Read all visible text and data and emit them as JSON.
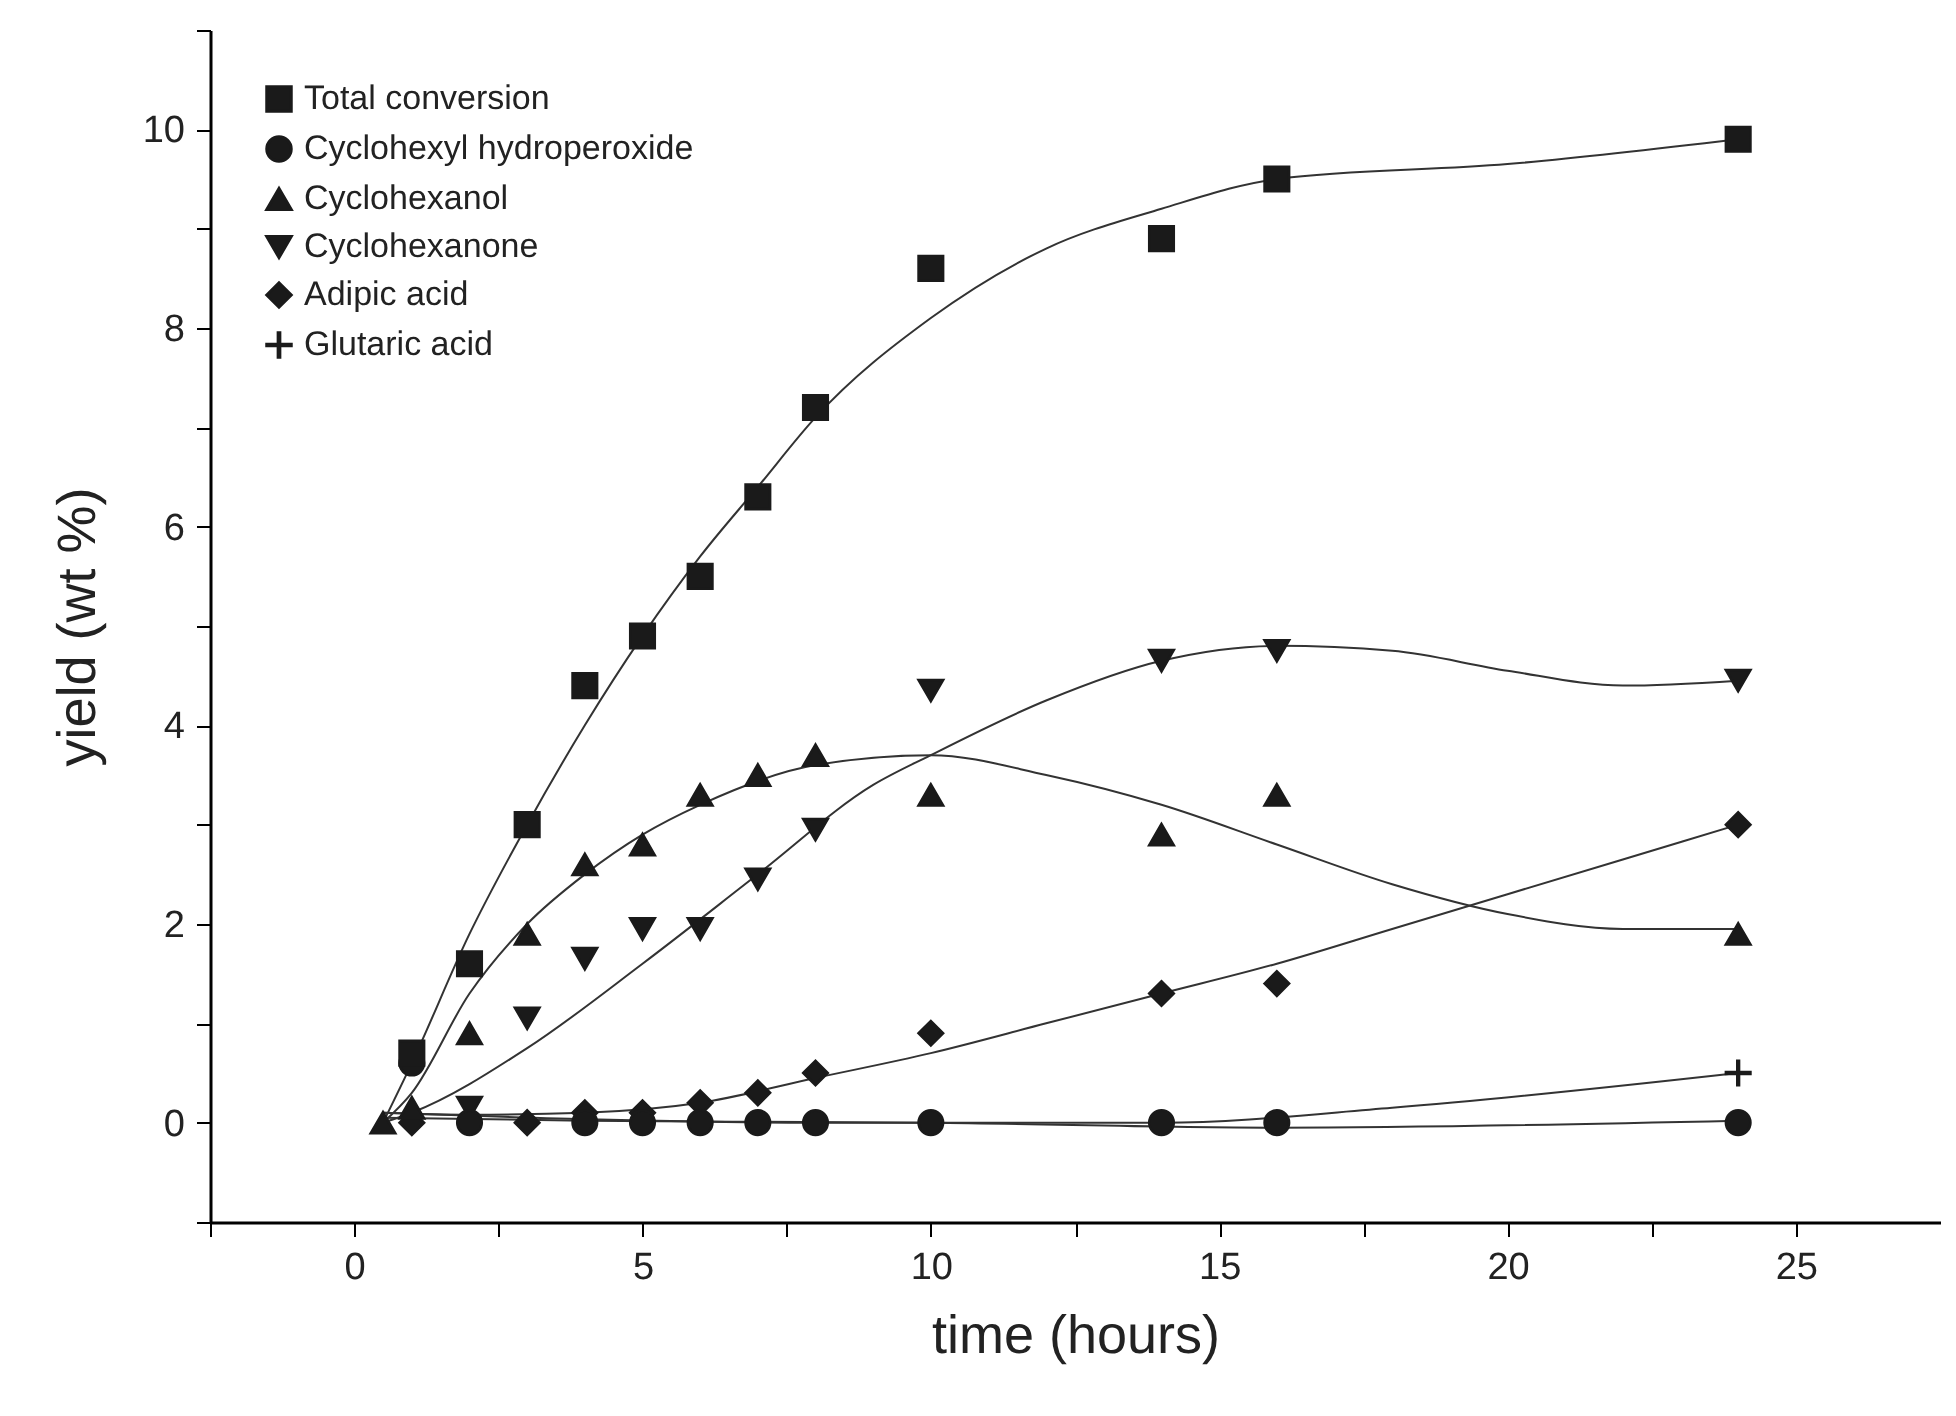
{
  "chart_data": {
    "type": "scatter",
    "xlabel": "time (hours)",
    "ylabel": "yield (wt %)",
    "xlim": [
      -2.5,
      27.5
    ],
    "ylim": [
      -1,
      11
    ],
    "xticks": [
      {
        "value": -2.5,
        "label": null
      },
      0,
      {
        "value": 2.5,
        "label": null
      },
      5,
      {
        "value": 7.5,
        "label": null
      },
      10,
      {
        "value": 12.5,
        "label": null
      },
      15,
      {
        "value": 17.5,
        "label": null
      },
      20,
      {
        "value": 22.5,
        "label": null
      },
      25
    ],
    "yticks": [
      {
        "value": -1,
        "label": null
      },
      0,
      {
        "value": 1,
        "label": null
      },
      2,
      {
        "value": 3,
        "label": null
      },
      4,
      {
        "value": 5,
        "label": null
      },
      6,
      {
        "value": 7,
        "label": null
      },
      8,
      {
        "value": 9,
        "label": null
      },
      10,
      {
        "value": 11,
        "label": null
      }
    ],
    "grid": false,
    "legend": "top left",
    "series": [
      {
        "name": "Total conversion",
        "marker": "square",
        "color": "#1a1a1a",
        "x": [
          1,
          2,
          3,
          4,
          5,
          6,
          7,
          8,
          10,
          14,
          16,
          24
        ],
        "values": [
          0.7,
          1.6,
          3.0,
          4.4,
          4.9,
          5.5,
          6.3,
          7.2,
          8.6,
          8.9,
          9.5,
          9.9
        ]
      },
      {
        "name": "Cyclohexyl hydroperoxide",
        "marker": "circle",
        "color": "#1a1a1a",
        "x": [
          1,
          2,
          4,
          5,
          6,
          7,
          8,
          10,
          14,
          16,
          24
        ],
        "values": [
          0.6,
          0,
          0,
          0,
          0,
          0,
          0,
          0,
          0,
          0,
          0
        ]
      },
      {
        "name": "Cyclohexanol",
        "marker": "triangle",
        "color": "#1a1a1a",
        "x": [
          0.5,
          1,
          2,
          3,
          4,
          5,
          6,
          7,
          8,
          10,
          14,
          16,
          24
        ],
        "values": [
          0,
          0.15,
          0.9,
          1.9,
          2.6,
          2.8,
          3.3,
          3.5,
          3.7,
          3.3,
          2.9,
          3.3,
          1.9
        ]
      },
      {
        "name": "Cyclohexanone",
        "marker": "triangle-down",
        "color": "#1a1a1a",
        "x": [
          2,
          3,
          4,
          5,
          6,
          7,
          8,
          10,
          14,
          16,
          24
        ],
        "values": [
          0.15,
          1.05,
          1.65,
          1.95,
          1.95,
          2.45,
          2.95,
          4.35,
          4.65,
          4.75,
          4.45
        ]
      },
      {
        "name": "Adipic acid",
        "marker": "diamond",
        "color": "#1a1a1a",
        "x": [
          1,
          3,
          4,
          5,
          6,
          7,
          8,
          10,
          14,
          16,
          24
        ],
        "values": [
          0,
          0,
          0.1,
          0.1,
          0.2,
          0.3,
          0.5,
          0.9,
          1.3,
          1.4,
          3.0
        ]
      },
      {
        "name": "Glutaric acid",
        "marker": "cross",
        "color": "#1a1a1a",
        "x": [
          24
        ],
        "values": [
          0.5
        ]
      },
      {
        "type": "line",
        "color": "#333333",
        "x": [
          0.5,
          1,
          2,
          3,
          4,
          5,
          6,
          7,
          8,
          10,
          12,
          14,
          16,
          20,
          24
        ],
        "values": [
          0,
          0.6,
          1.9,
          3.0,
          4.0,
          4.9,
          5.7,
          6.4,
          7.1,
          8.1,
          8.8,
          9.2,
          9.5,
          9.65,
          9.9
        ]
      },
      {
        "type": "line",
        "color": "#333333",
        "x": [
          0.5,
          1,
          2,
          3,
          4,
          5,
          6,
          8,
          10,
          12,
          14,
          16,
          18,
          20,
          22,
          24
        ],
        "values": [
          0,
          0.3,
          1.3,
          2.0,
          2.5,
          2.9,
          3.2,
          3.6,
          3.7,
          3.5,
          3.2,
          2.8,
          2.4,
          2.1,
          1.95,
          1.95
        ]
      },
      {
        "type": "line",
        "color": "#333333",
        "x": [
          0.5,
          1,
          3,
          5,
          7,
          9,
          10,
          12,
          14,
          16,
          18,
          20,
          22,
          24
        ],
        "values": [
          0,
          0.1,
          0.75,
          1.6,
          2.5,
          3.4,
          3.7,
          4.25,
          4.65,
          4.8,
          4.75,
          4.55,
          4.4,
          4.45
        ]
      },
      {
        "type": "line",
        "color": "#333333",
        "x": [
          0.5,
          2,
          4,
          6,
          8,
          10,
          12,
          14,
          16,
          18,
          20,
          22,
          24
        ],
        "values": [
          0.1,
          0.08,
          0.1,
          0.2,
          0.45,
          0.7,
          1.0,
          1.3,
          1.6,
          1.95,
          2.3,
          2.65,
          3.0
        ]
      },
      {
        "type": "line",
        "color": "#333333",
        "x": [
          0.5,
          4,
          10,
          16,
          24
        ],
        "values": [
          0.05,
          0.02,
          0,
          -0.05,
          0.02
        ]
      },
      {
        "type": "line",
        "color": "#333333",
        "x": [
          0.5,
          8,
          14,
          18,
          24
        ],
        "values": [
          0.1,
          0,
          0,
          0.15,
          0.5
        ]
      }
    ]
  }
}
